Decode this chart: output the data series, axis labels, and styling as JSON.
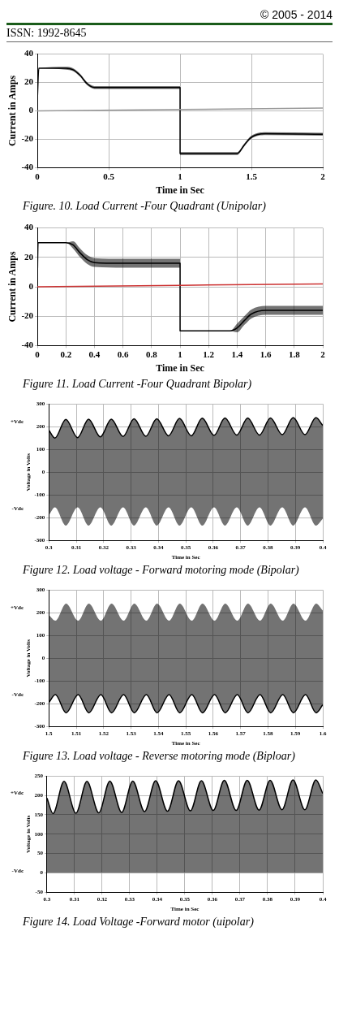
{
  "chart_data": [
    {
      "type": "line",
      "xlabel": "Time in Sec",
      "ylabel": "Current in Amps",
      "xlim": [
        0,
        2
      ],
      "ylim": [
        -40,
        40
      ],
      "xticks": [
        0,
        0.5,
        1,
        1.5,
        2
      ],
      "yticks": [
        -40,
        -20,
        0,
        20,
        40
      ],
      "grid": true,
      "legend": false,
      "annotations": [
        "© 2005 - 2014",
        "ISSN: 1992-8645",
        "Figure. 10. Load Current -Four Quadrant (Unipolar)"
      ],
      "series": [
        {
          "color": "#999999",
          "x": [
            0,
            2
          ],
          "values": [
            0,
            2
          ]
        },
        {
          "color": "#000000",
          "x": [
            0,
            0.01,
            0.2,
            0.25,
            0.3,
            0.35,
            0.4,
            1,
            1,
            1.4,
            1.45,
            1.5,
            1.6,
            2
          ],
          "values": [
            8,
            30,
            30,
            29,
            25,
            19,
            16.5,
            16.5,
            -30,
            -30,
            -24,
            -18.5,
            -16,
            -16.5
          ],
          "lower": [
            8,
            30,
            29,
            28,
            24,
            18,
            15.5,
            15.5,
            -31,
            -31,
            -25,
            -19.5,
            -17,
            -17.5
          ],
          "upper": [
            8,
            30,
            31,
            30,
            26,
            20,
            17.5,
            17.5,
            -29,
            -29,
            -23,
            -17.5,
            -15,
            -15.5
          ]
        }
      ]
    },
    {
      "type": "line",
      "xlabel": "Time in Sec",
      "ylabel": "Current in Amps",
      "xlim": [
        0,
        2
      ],
      "ylim": [
        -40,
        40
      ],
      "xticks": [
        0,
        0.2,
        0.4,
        0.6,
        0.8,
        1,
        1.2,
        1.4,
        1.6,
        1.8,
        2
      ],
      "yticks": [
        -40,
        -20,
        0,
        20,
        40
      ],
      "grid": true,
      "legend": false,
      "annotations": [
        "Figure 11. Load Current -Four Quadrant Bipolar)"
      ],
      "series": [
        {
          "color": "#cc3333",
          "x": [
            0,
            2
          ],
          "values": [
            0,
            2
          ]
        },
        {
          "color": "#000000",
          "x": [
            0,
            0.005,
            0.2,
            0.25,
            0.3,
            0.35,
            0.4,
            0.6,
            1,
            1,
            1.35,
            1.4,
            1.45,
            1.5,
            1.6,
            2
          ],
          "values": [
            5,
            30,
            30,
            28.5,
            23,
            18.5,
            16.5,
            16,
            16,
            -30,
            -30,
            -28,
            -23,
            -18.5,
            -16,
            -16
          ],
          "lower": [
            5,
            30,
            30,
            26,
            20,
            15.5,
            13.5,
            13,
            13,
            -30,
            -30,
            -31,
            -26,
            -21.5,
            -19,
            -19
          ],
          "upper": [
            5,
            30,
            30,
            31,
            26,
            21.5,
            19.5,
            19,
            19,
            -30,
            -30,
            -25,
            -20,
            -15.5,
            -13,
            -13
          ]
        }
      ]
    },
    {
      "type": "line",
      "xlabel": "Time in Sec",
      "ylabel": "Voltage in Volts",
      "xlim": [
        0.3,
        0.4
      ],
      "ylim": [
        -300,
        300
      ],
      "xticks": [
        0.3,
        0.31,
        0.32,
        0.33,
        0.34,
        0.35,
        0.36,
        0.37,
        0.38,
        0.39,
        0.4
      ],
      "yticks": [
        -300,
        -200,
        -100,
        0,
        100,
        200,
        300
      ],
      "grid": true,
      "legend": false,
      "annotations": [
        "+Vdc",
        "-Vdc",
        "Figure 12. Load voltage - Forward motoring mode (Bipolar)"
      ],
      "series": [
        {
          "color": "#000000",
          "x": [
            0.3,
            0.3022,
            0.3062,
            0.3105,
            0.3145,
            0.3188,
            0.3228,
            0.3271,
            0.3311,
            0.3354,
            0.3394,
            0.3437,
            0.3477,
            0.352,
            0.356,
            0.3603,
            0.3643,
            0.3686,
            0.3726,
            0.3769,
            0.3809,
            0.3852,
            0.3892,
            0.3935,
            0.3975,
            0.4
          ],
          "values": [
            185,
            150,
            232,
            152,
            233,
            155,
            233,
            157,
            235,
            158,
            235,
            160,
            236,
            160,
            237,
            162,
            238,
            163,
            238,
            163,
            238,
            165,
            240,
            165,
            240,
            205
          ],
          "lower": [
            -190,
            -155,
            -235,
            -155,
            -235,
            -155,
            -235,
            -155,
            -235,
            -155,
            -235,
            -155,
            -235,
            -155,
            -235,
            -155,
            -235,
            -155,
            -235,
            -155,
            -235,
            -155,
            -235,
            -155,
            -235,
            -205
          ],
          "upper": [
            185,
            150,
            232,
            152,
            233,
            155,
            233,
            157,
            235,
            158,
            235,
            160,
            236,
            160,
            237,
            162,
            238,
            163,
            238,
            163,
            238,
            165,
            240,
            165,
            240,
            205
          ]
        }
      ]
    },
    {
      "type": "line",
      "xlabel": "Time in Sec",
      "ylabel": "Voltage in Volts",
      "xlim": [
        1.5,
        1.6
      ],
      "ylim": [
        -300,
        300
      ],
      "xticks": [
        1.5,
        1.51,
        1.52,
        1.53,
        1.54,
        1.55,
        1.56,
        1.57,
        1.58,
        1.59,
        1.6
      ],
      "yticks": [
        -300,
        -200,
        -100,
        0,
        100,
        200,
        300
      ],
      "grid": true,
      "legend": false,
      "annotations": [
        "+Vdc",
        "-Vdc",
        "Figure  13. Load voltage - Reverse motoring mode (Biploar)"
      ],
      "series": [
        {
          "color": "#000000",
          "x": [
            1.5,
            1.5024,
            1.5063,
            1.5107,
            1.5146,
            1.519,
            1.5229,
            1.5273,
            1.5312,
            1.5356,
            1.5395,
            1.5439,
            1.5478,
            1.5522,
            1.5561,
            1.5605,
            1.5644,
            1.5688,
            1.5727,
            1.5771,
            1.581,
            1.5854,
            1.5893,
            1.5937,
            1.5976,
            1.6
          ],
          "values": [
            -195,
            -160,
            -240,
            -160,
            -240,
            -160,
            -240,
            -160,
            -240,
            -160,
            -240,
            -160,
            -240,
            -160,
            -240,
            -160,
            -240,
            -160,
            -240,
            -160,
            -240,
            -160,
            -240,
            -160,
            -240,
            -205
          ],
          "lower": [
            -195,
            -160,
            -240,
            -160,
            -240,
            -160,
            -240,
            -160,
            -240,
            -160,
            -240,
            -160,
            -240,
            -160,
            -240,
            -160,
            -240,
            -160,
            -240,
            -160,
            -240,
            -160,
            -240,
            -160,
            -240,
            -205
          ],
          "upper": [
            190,
            165,
            240,
            165,
            240,
            165,
            240,
            165,
            240,
            165,
            240,
            165,
            240,
            165,
            240,
            165,
            240,
            165,
            240,
            165,
            240,
            165,
            240,
            165,
            240,
            210
          ]
        }
      ]
    },
    {
      "type": "line",
      "xlabel": "Time in Sec",
      "ylabel": "Voltage in Volts",
      "xlim": [
        0.3,
        0.4
      ],
      "ylim": [
        -50,
        250
      ],
      "xticks": [
        0.3,
        0.31,
        0.32,
        0.33,
        0.34,
        0.35,
        0.36,
        0.37,
        0.38,
        0.39,
        0.4
      ],
      "yticks": [
        -50,
        0,
        50,
        100,
        150,
        200,
        250
      ],
      "grid": true,
      "legend": false,
      "annotations": [
        "+Vdc",
        "-Vdc",
        "Figure  14. Load Voltage -Forward motor (uipolar)"
      ],
      "series": [
        {
          "color": "#000000",
          "x": [
            0.3,
            0.3022,
            0.3062,
            0.3105,
            0.3145,
            0.3188,
            0.3228,
            0.3271,
            0.3311,
            0.3354,
            0.3394,
            0.3437,
            0.3477,
            0.352,
            0.356,
            0.3603,
            0.3643,
            0.3686,
            0.3726,
            0.3769,
            0.3809,
            0.3852,
            0.3892,
            0.3935,
            0.3975,
            0.4
          ],
          "values": [
            193,
            153,
            236,
            154,
            236,
            155,
            237,
            156,
            237,
            158,
            238,
            159,
            238,
            160,
            238,
            161,
            239,
            161,
            239,
            162,
            239,
            163,
            240,
            163,
            240,
            205
          ],
          "lower": [
            0,
            0,
            0,
            0,
            0,
            0,
            0,
            0,
            0,
            0,
            0,
            0,
            0,
            0,
            0,
            0,
            0,
            0,
            0,
            0,
            0,
            0,
            0,
            0,
            0,
            0
          ],
          "upper": [
            193,
            153,
            236,
            154,
            236,
            155,
            237,
            156,
            237,
            158,
            238,
            159,
            238,
            160,
            238,
            161,
            239,
            161,
            239,
            162,
            239,
            163,
            240,
            163,
            240,
            205
          ]
        }
      ]
    }
  ]
}
